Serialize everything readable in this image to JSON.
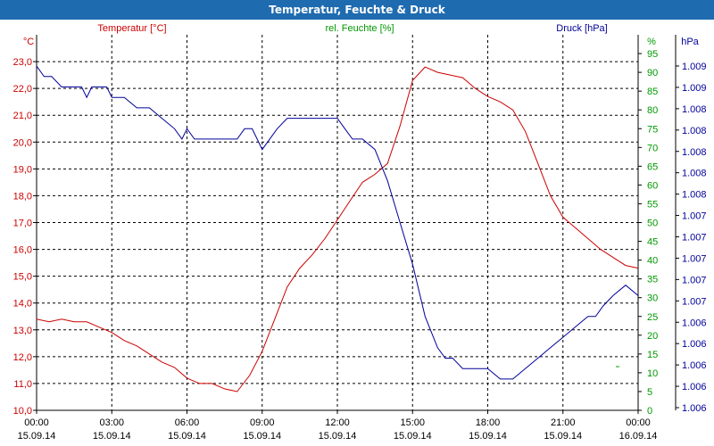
{
  "chart_data": {
    "type": "line",
    "title": "Temperatur, Feuchte & Druck",
    "x_ticks": [
      {
        "t": 0,
        "time": "00:00",
        "date": "15.09.14"
      },
      {
        "t": 3,
        "time": "03:00",
        "date": "15.09.14"
      },
      {
        "t": 6,
        "time": "06:00",
        "date": "15.09.14"
      },
      {
        "t": 9,
        "time": "09:00",
        "date": "15.09.14"
      },
      {
        "t": 12,
        "time": "12:00",
        "date": "15.09.14"
      },
      {
        "t": 15,
        "time": "15:00",
        "date": "15.09.14"
      },
      {
        "t": 18,
        "time": "18:00",
        "date": "15.09.14"
      },
      {
        "t": 21,
        "time": "21:00",
        "date": "15.09.14"
      },
      {
        "t": 24,
        "time": "00:00",
        "date": "16.09.14"
      }
    ],
    "xlim": [
      0,
      24
    ],
    "axes": {
      "temperature": {
        "label": "Temperatur [°C]",
        "unit": "°C",
        "color": "#cc0000",
        "ylim": [
          10,
          24
        ],
        "ticks": [
          "10,0",
          "11,0",
          "12,0",
          "13,0",
          "14,0",
          "15,0",
          "16,0",
          "17,0",
          "18,0",
          "19,0",
          "20,0",
          "21,0",
          "22,0",
          "23,0"
        ]
      },
      "humidity": {
        "label": "rel. Feuchte [%]",
        "unit": "%",
        "color": "#009900",
        "ylim": [
          0,
          100
        ],
        "ticks": [
          "0",
          "5",
          "10",
          "15",
          "20",
          "25",
          "30",
          "35",
          "40",
          "45",
          "50",
          "55",
          "60",
          "65",
          "70",
          "75",
          "80",
          "85",
          "90",
          "95"
        ]
      },
      "pressure": {
        "label": "Druck [hPa]",
        "unit": "hPa",
        "color": "#000099",
        "ticks": [
          "1.006",
          "1.006",
          "1.006",
          "1.006",
          "1.006",
          "1.007",
          "1.007",
          "1.007",
          "1.007",
          "1.007",
          "1.008",
          "1.008",
          "1.008",
          "1.008",
          "1.008",
          "1.009",
          "1.009"
        ]
      }
    },
    "series": [
      {
        "name": "Temperatur",
        "axis": "temperature",
        "color": "#cc0000",
        "x": [
          0,
          0.5,
          1,
          1.5,
          2,
          2.5,
          3,
          3.5,
          4,
          4.5,
          5,
          5.5,
          6,
          6.5,
          7,
          7.5,
          8,
          8.5,
          9,
          9.5,
          10,
          10.5,
          11,
          11.5,
          12,
          12.5,
          13,
          13.5,
          14,
          14.5,
          15,
          15.5,
          16,
          16.5,
          17,
          17.5,
          18,
          18.5,
          19,
          19.5,
          20,
          20.5,
          21,
          21.5,
          22,
          22.5,
          23,
          23.5,
          24
        ],
        "values": [
          13.4,
          13.3,
          13.4,
          13.3,
          13.3,
          13.1,
          12.9,
          12.6,
          12.4,
          12.1,
          11.8,
          11.6,
          11.2,
          11.0,
          11.0,
          10.8,
          10.7,
          11.3,
          12.2,
          13.4,
          14.6,
          15.3,
          15.8,
          16.4,
          17.1,
          17.8,
          18.5,
          18.8,
          19.2,
          20.6,
          22.3,
          22.8,
          22.6,
          22.5,
          22.4,
          22.0,
          21.7,
          21.5,
          21.2,
          20.4,
          19.2,
          18.0,
          17.2,
          16.8,
          16.4,
          16.0,
          15.7,
          15.4,
          15.3
        ]
      },
      {
        "name": "Druck",
        "axis": "pressure",
        "color": "#000099",
        "x": [
          0,
          0.3,
          0.6,
          1,
          1.5,
          1.8,
          2,
          2.2,
          2.5,
          2.8,
          3,
          3.5,
          4,
          4.5,
          5,
          5.5,
          5.8,
          6,
          6.3,
          6.6,
          7,
          7.5,
          8,
          8.3,
          8.6,
          9,
          9.3,
          9.6,
          10,
          10.5,
          11,
          11.5,
          12,
          12.3,
          12.6,
          13,
          13.5,
          14,
          14.5,
          15,
          15.5,
          16,
          16.3,
          16.6,
          17,
          17.5,
          18,
          18.5,
          19,
          19.5,
          20,
          20.5,
          21,
          21.5,
          22,
          22.3,
          22.6,
          23,
          23.5,
          24
        ],
        "values": [
          1.009,
          1.0089,
          1.0089,
          1.0088,
          1.0088,
          1.0088,
          1.0087,
          1.0088,
          1.0088,
          1.0088,
          1.0087,
          1.0087,
          1.0086,
          1.0086,
          1.0085,
          1.0084,
          1.0083,
          1.0084,
          1.0083,
          1.0083,
          1.0083,
          1.0083,
          1.0083,
          1.0084,
          1.0084,
          1.0082,
          1.0083,
          1.0084,
          1.0085,
          1.0085,
          1.0085,
          1.0085,
          1.0085,
          1.0084,
          1.0083,
          1.0083,
          1.0082,
          1.0079,
          1.0075,
          1.0071,
          1.0066,
          1.0063,
          1.0062,
          1.0062,
          1.0061,
          1.0061,
          1.0061,
          1.006,
          1.006,
          1.0061,
          1.0062,
          1.0063,
          1.0064,
          1.0065,
          1.0066,
          1.0066,
          1.0067,
          1.0068,
          1.0069,
          1.0068
        ]
      }
    ],
    "grid": true
  }
}
